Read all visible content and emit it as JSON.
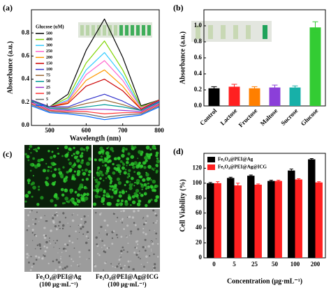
{
  "chart_data": [
    {
      "type": "line",
      "panel_label": "(a)",
      "x_label": "Wavelength (nm)",
      "y_label": "Absorbance (a.u.)",
      "legend_title": "Glucose (uM)",
      "legend": "upper left",
      "x": [
        450,
        500,
        550,
        600,
        650,
        700,
        750,
        800
      ],
      "xlim": [
        450,
        800
      ],
      "xticks": [
        500,
        600,
        700,
        800
      ],
      "ylim": [
        0,
        1.0
      ],
      "yticks": [
        {
          "value": 0,
          "label": "0.0"
        },
        {
          "value": 0.2,
          "label": "0.2"
        },
        {
          "value": 0.4,
          "label": "0.4"
        },
        {
          "value": 0.6,
          "label": "0.6"
        },
        {
          "value": 0.8,
          "label": "0.8"
        }
      ],
      "series": [
        {
          "name": "500",
          "color": "#000000",
          "values": [
            0.22,
            0.16,
            0.27,
            0.65,
            0.92,
            0.59,
            0.17,
            0.22
          ]
        },
        {
          "name": "400",
          "color": "#7fd400",
          "values": [
            0.22,
            0.16,
            0.24,
            0.54,
            0.73,
            0.48,
            0.16,
            0.22
          ]
        },
        {
          "name": "300",
          "color": "#33ccff",
          "values": [
            0.22,
            0.16,
            0.22,
            0.48,
            0.63,
            0.43,
            0.15,
            0.22
          ]
        },
        {
          "name": "250",
          "color": "#ff66cc",
          "values": [
            0.22,
            0.16,
            0.21,
            0.44,
            0.56,
            0.39,
            0.15,
            0.22
          ]
        },
        {
          "name": "200",
          "color": "#ff9900",
          "values": [
            0.22,
            0.16,
            0.2,
            0.39,
            0.48,
            0.34,
            0.14,
            0.22
          ]
        },
        {
          "name": "150",
          "color": "#cc0000",
          "values": [
            0.22,
            0.16,
            0.19,
            0.34,
            0.4,
            0.3,
            0.14,
            0.22
          ]
        },
        {
          "name": "100",
          "color": "#3333cc",
          "values": [
            0.22,
            0.16,
            0.16,
            0.22,
            0.27,
            0.21,
            0.13,
            0.21
          ]
        },
        {
          "name": "75",
          "color": "#996633",
          "values": [
            0.21,
            0.15,
            0.15,
            0.19,
            0.22,
            0.18,
            0.13,
            0.2
          ]
        },
        {
          "name": "50",
          "color": "#009999",
          "values": [
            0.21,
            0.15,
            0.14,
            0.16,
            0.18,
            0.16,
            0.13,
            0.2
          ]
        },
        {
          "name": "25",
          "color": "#9933cc",
          "values": [
            0.2,
            0.14,
            0.13,
            0.14,
            0.14,
            0.13,
            0.12,
            0.19
          ]
        },
        {
          "name": "10",
          "color": "#ff3333",
          "values": [
            0.19,
            0.13,
            0.12,
            0.12,
            0.1,
            0.11,
            0.11,
            0.18
          ]
        },
        {
          "name": "5",
          "color": "#666666",
          "values": [
            0.18,
            0.12,
            0.11,
            0.1,
            0.07,
            0.09,
            0.1,
            0.17
          ]
        },
        {
          "name": "1",
          "color": "#0066ff",
          "values": [
            0.17,
            0.11,
            0.1,
            0.08,
            0.05,
            0.07,
            0.09,
            0.16
          ]
        }
      ]
    },
    {
      "type": "bar",
      "panel_label": "(b)",
      "y_label": "Absorbance (a.u.)",
      "categories": [
        "Control",
        "Lactose",
        "Fructose",
        "Maltose",
        "Sucrose",
        "Glucose"
      ],
      "values": [
        0.22,
        0.24,
        0.22,
        0.23,
        0.23,
        0.98
      ],
      "errors": [
        0.02,
        0.03,
        0.02,
        0.03,
        0.02,
        0.07
      ],
      "colors": [
        "#000000",
        "#ff2020",
        "#ff7f00",
        "#8b3fd9",
        "#17b0a8",
        "#33cc33"
      ],
      "ylim": [
        0,
        1.2
      ],
      "yticks": [
        {
          "value": 0,
          "label": "0.0"
        },
        {
          "value": 0.2,
          "label": "0.2"
        },
        {
          "value": 0.4,
          "label": "0.4"
        },
        {
          "value": 0.6,
          "label": "0.6"
        },
        {
          "value": 0.8,
          "label": "0.8"
        },
        {
          "value": 1.0,
          "label": "1.0"
        }
      ]
    },
    {
      "type": "bar",
      "panel_label": "(d)",
      "y_label": "Cell Viability (%)",
      "x_label": "Concentration (μg·mL⁻¹)",
      "legend": "upper left",
      "categories": [
        "0",
        "5",
        "25",
        "50",
        "100",
        "200"
      ],
      "series": [
        {
          "name": "Fe₃O₄@PEI@Ag",
          "color": "#000000",
          "values": [
            100,
            107,
            110,
            103,
            117,
            132
          ],
          "errors": [
            1,
            1,
            1,
            1,
            2,
            1
          ]
        },
        {
          "name": "Fe₃O₄@PEI@Ag@ICG",
          "color": "#ff2020",
          "values": [
            100,
            97,
            98,
            103,
            105,
            101
          ],
          "errors": [
            2,
            3,
            1,
            1,
            1,
            1
          ]
        }
      ],
      "ylim": [
        0,
        140
      ],
      "yticks": [
        0,
        20,
        40,
        60,
        80,
        100,
        120
      ]
    }
  ],
  "image_panel": {
    "panel_label": "(c)",
    "captions": [
      [
        "Fe₃O₄@PEI@Ag",
        "(100 μg·mL⁻¹)"
      ],
      [
        "Fe₃O₄@PEI@Ag@ICG",
        "(100 μg·mL⁻¹)"
      ]
    ]
  }
}
